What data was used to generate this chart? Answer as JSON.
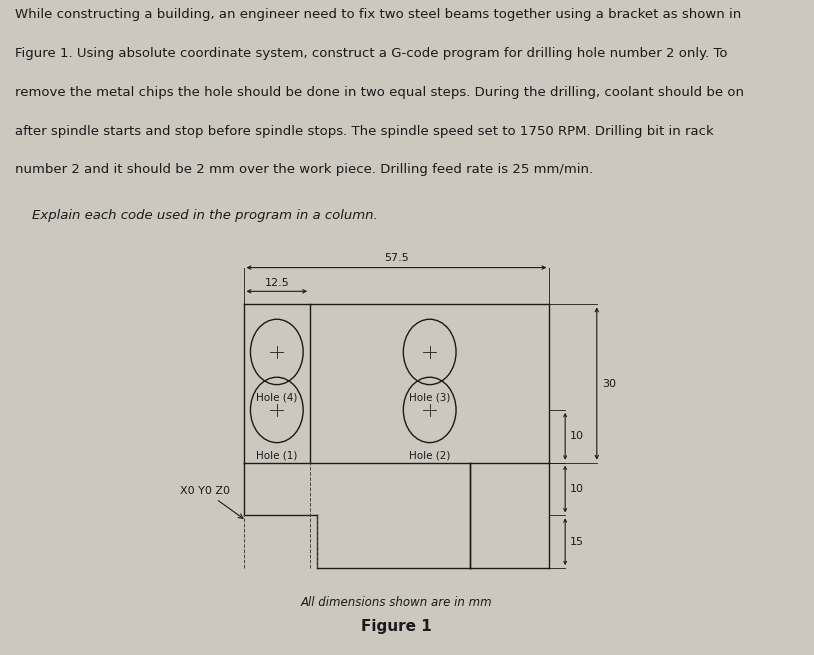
{
  "bg_color": "#ccc8c0",
  "text_color": "#1a1a1a",
  "paragraph_text": [
    "While constructing a building, an engineer need to fix two steel beams together using a bracket as shown in",
    "Figure 1. Using absolute coordinate system, construct a G-code program for drilling hole number 2 only. To",
    "remove the metal chips the hole should be done in two equal steps. During the drilling, coolant should be on",
    "after spindle starts and stop before spindle stops. The spindle speed set to 1750 RPM. Drilling bit in rack",
    "number 2 and it should be 2 mm over the work piece. Drilling feed rate is 25 mm/min."
  ],
  "sub_text": "    Explain each code used in the program in a column.",
  "figure_caption": "Figure 1",
  "dim_note": "All dimensions shown are in mm",
  "dim_57_5": "57.5",
  "dim_12_5": "12.5",
  "dim_30": "30",
  "dim_10_top": "10",
  "dim_10_bot": "10",
  "dim_15": "15",
  "x0y0z0_label": "X0 Y0 Z0",
  "line_color": "#1a1a1a",
  "dash_color": "#444444",
  "para_fontsize": 9.5,
  "sub_fontsize": 9.5,
  "fig_fontsize": 11,
  "note_fontsize": 8.5,
  "dim_fontsize": 8,
  "hole_fontsize": 7.5,
  "lw": 1.0
}
